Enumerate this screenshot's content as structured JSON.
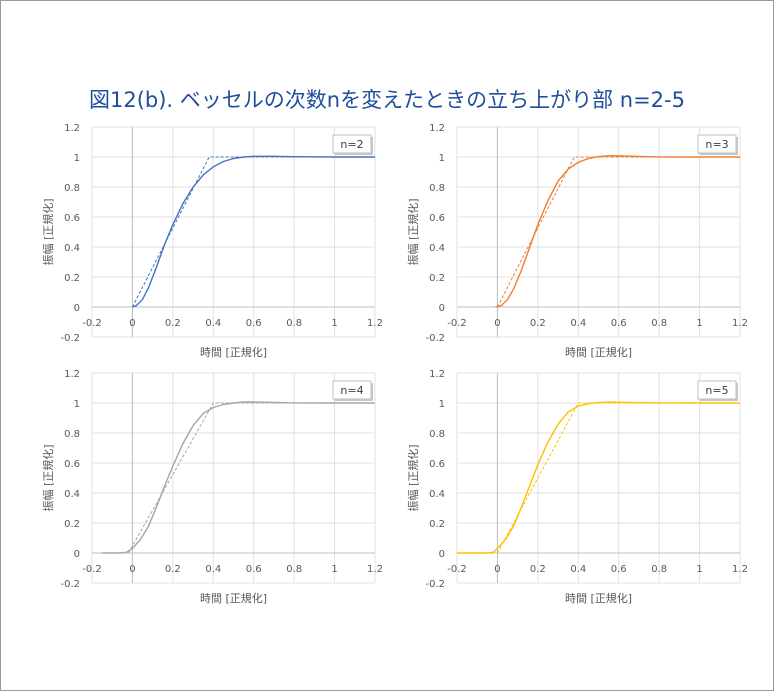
{
  "title": "図12(b). ベッセルの次数nを変えたときの立ち上がり部 n=2-5",
  "chart_data": [
    {
      "type": "line",
      "label": "n=2",
      "order": 2,
      "color": "#4472C4",
      "xlabel": "時間 [正規化]",
      "ylabel": "振幅 [正規化]",
      "xlim": [
        -0.2,
        1.2
      ],
      "ylim": [
        -0.2,
        1.2
      ],
      "xticks": [
        "-0.2",
        "0",
        "0.2",
        "0.4",
        "0.6",
        "0.8",
        "1",
        "1.2"
      ],
      "yticks": [
        "-0.2",
        "0",
        "0.2",
        "0.4",
        "0.6",
        "0.8",
        "1",
        "1.2"
      ],
      "grid": true,
      "series": [
        {
          "style": "solid",
          "x": [
            0,
            0.02,
            0.05,
            0.08,
            0.12,
            0.16,
            0.2,
            0.25,
            0.3,
            0.35,
            0.4,
            0.45,
            0.5,
            0.55,
            0.6,
            0.7,
            0.8,
            1.0,
            1.2
          ],
          "y": [
            0,
            0.01,
            0.05,
            0.13,
            0.27,
            0.42,
            0.55,
            0.69,
            0.8,
            0.88,
            0.935,
            0.97,
            0.99,
            1.0,
            1.005,
            1.005,
            1.002,
            1.0,
            1.0
          ]
        },
        {
          "style": "dashed",
          "x": [
            0,
            0.38,
            1.2
          ],
          "y": [
            0,
            1,
            1
          ]
        }
      ]
    },
    {
      "type": "line",
      "label": "n=3",
      "order": 3,
      "color": "#ED7D31",
      "xlabel": "時間 [正規化]",
      "ylabel": "振幅 [正規化]",
      "xlim": [
        -0.2,
        1.2
      ],
      "ylim": [
        -0.2,
        1.2
      ],
      "xticks": [
        "-0.2",
        "0",
        "0.2",
        "0.4",
        "0.6",
        "0.8",
        "1",
        "1.2"
      ],
      "yticks": [
        "-0.2",
        "0",
        "0.2",
        "0.4",
        "0.6",
        "0.8",
        "1",
        "1.2"
      ],
      "grid": true,
      "series": [
        {
          "style": "solid",
          "x": [
            -0.01,
            0.02,
            0.05,
            0.08,
            0.12,
            0.16,
            0.2,
            0.25,
            0.3,
            0.35,
            0.4,
            0.45,
            0.5,
            0.55,
            0.6,
            0.7,
            0.8,
            1.0,
            1.2
          ],
          "y": [
            0,
            0.01,
            0.05,
            0.12,
            0.25,
            0.4,
            0.55,
            0.71,
            0.84,
            0.92,
            0.965,
            0.99,
            1.003,
            1.008,
            1.008,
            1.004,
            1.001,
            1.0,
            1.0
          ]
        },
        {
          "style": "dashed",
          "x": [
            0,
            0.38,
            1.2
          ],
          "y": [
            0,
            1,
            1
          ]
        }
      ]
    },
    {
      "type": "line",
      "label": "n=4",
      "order": 4,
      "color": "#A5A5A5",
      "xlabel": "時間 [正規化]",
      "ylabel": "振幅 [正規化]",
      "xlim": [
        -0.2,
        1.2
      ],
      "ylim": [
        -0.2,
        1.2
      ],
      "xticks": [
        "-0.2",
        "0",
        "0.2",
        "0.4",
        "0.6",
        "0.8",
        "1",
        "1.2"
      ],
      "yticks": [
        "-0.2",
        "0",
        "0.2",
        "0.4",
        "0.6",
        "0.8",
        "1",
        "1.2"
      ],
      "grid": true,
      "series": [
        {
          "style": "solid",
          "x": [
            -0.15,
            -0.06,
            -0.03,
            0,
            0.04,
            0.08,
            0.12,
            0.16,
            0.2,
            0.25,
            0.3,
            0.35,
            0.4,
            0.45,
            0.5,
            0.55,
            0.6,
            0.7,
            0.8,
            1.0,
            1.2
          ],
          "y": [
            0,
            0,
            0.005,
            0.03,
            0.09,
            0.18,
            0.31,
            0.45,
            0.58,
            0.73,
            0.85,
            0.93,
            0.97,
            0.99,
            1.0,
            1.007,
            1.007,
            1.004,
            1.001,
            1.0,
            1.0
          ]
        },
        {
          "style": "dashed",
          "x": [
            -0.02,
            0.4,
            1.2
          ],
          "y": [
            0,
            1,
            1
          ]
        }
      ]
    },
    {
      "type": "line",
      "label": "n=5",
      "order": 5,
      "color": "#FFC000",
      "xlabel": "時間 [正規化]",
      "ylabel": "振幅 [正規化]",
      "xlim": [
        -0.2,
        1.2
      ],
      "ylim": [
        -0.2,
        1.2
      ],
      "xticks": [
        "-0.2",
        "0",
        "0.2",
        "0.4",
        "0.6",
        "0.8",
        "1",
        "1.2"
      ],
      "yticks": [
        "-0.2",
        "0",
        "0.2",
        "0.4",
        "0.6",
        "0.8",
        "1",
        "1.2"
      ],
      "grid": true,
      "series": [
        {
          "style": "solid",
          "x": [
            -0.2,
            -0.05,
            -0.02,
            0,
            0.04,
            0.08,
            0.12,
            0.16,
            0.2,
            0.25,
            0.3,
            0.35,
            0.4,
            0.45,
            0.5,
            0.55,
            0.6,
            0.7,
            0.8,
            1.0,
            1.2
          ],
          "y": [
            0,
            0,
            0.005,
            0.03,
            0.09,
            0.18,
            0.31,
            0.45,
            0.59,
            0.74,
            0.86,
            0.94,
            0.98,
            0.995,
            1.003,
            1.006,
            1.005,
            1.003,
            1.001,
            1.0,
            1.0
          ]
        },
        {
          "style": "dashed",
          "x": [
            0,
            0.4,
            1.2
          ],
          "y": [
            0,
            1,
            1
          ]
        }
      ]
    }
  ]
}
